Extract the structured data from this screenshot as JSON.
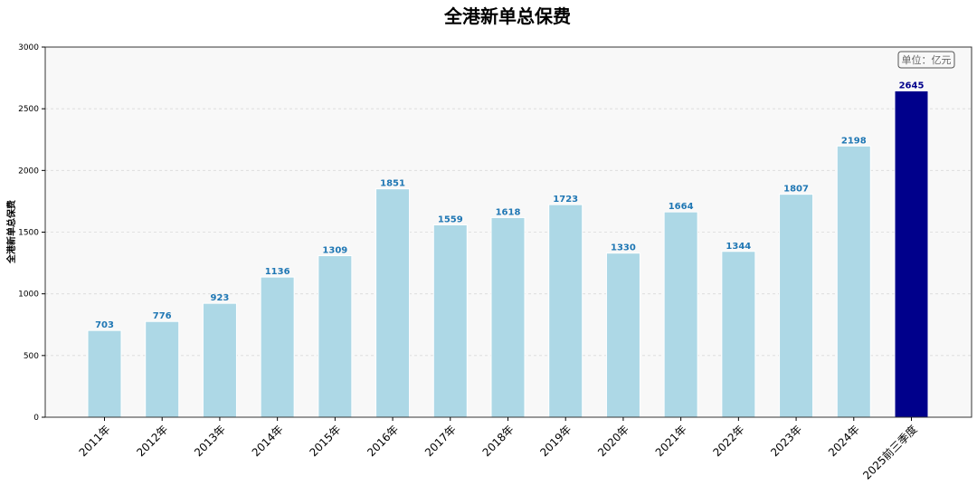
{
  "chart_data": {
    "type": "bar",
    "title": "全港新单总保费",
    "xlabel": "",
    "ylabel": "全港新单总保费",
    "unit_note": "单位：亿元",
    "categories": [
      "2011年",
      "2012年",
      "2013年",
      "2014年",
      "2015年",
      "2016年",
      "2017年",
      "2018年",
      "2019年",
      "2020年",
      "2021年",
      "2022年",
      "2023年",
      "2024年",
      "2025前三季度"
    ],
    "values": [
      703,
      776,
      923,
      1136,
      1309,
      1851,
      1559,
      1618,
      1723,
      1330,
      1664,
      1344,
      1807,
      2198,
      2645
    ],
    "ylim": [
      0,
      3000
    ],
    "yticks": [
      0,
      500,
      1000,
      1500,
      2000,
      2500,
      3000
    ],
    "grid": true,
    "colors": {
      "bar": "#add8e6",
      "highlight_bar": "#00008b",
      "label": "#1f77b4",
      "highlight_label": "#00008b",
      "plot_bg": "#f8f8f8"
    }
  }
}
